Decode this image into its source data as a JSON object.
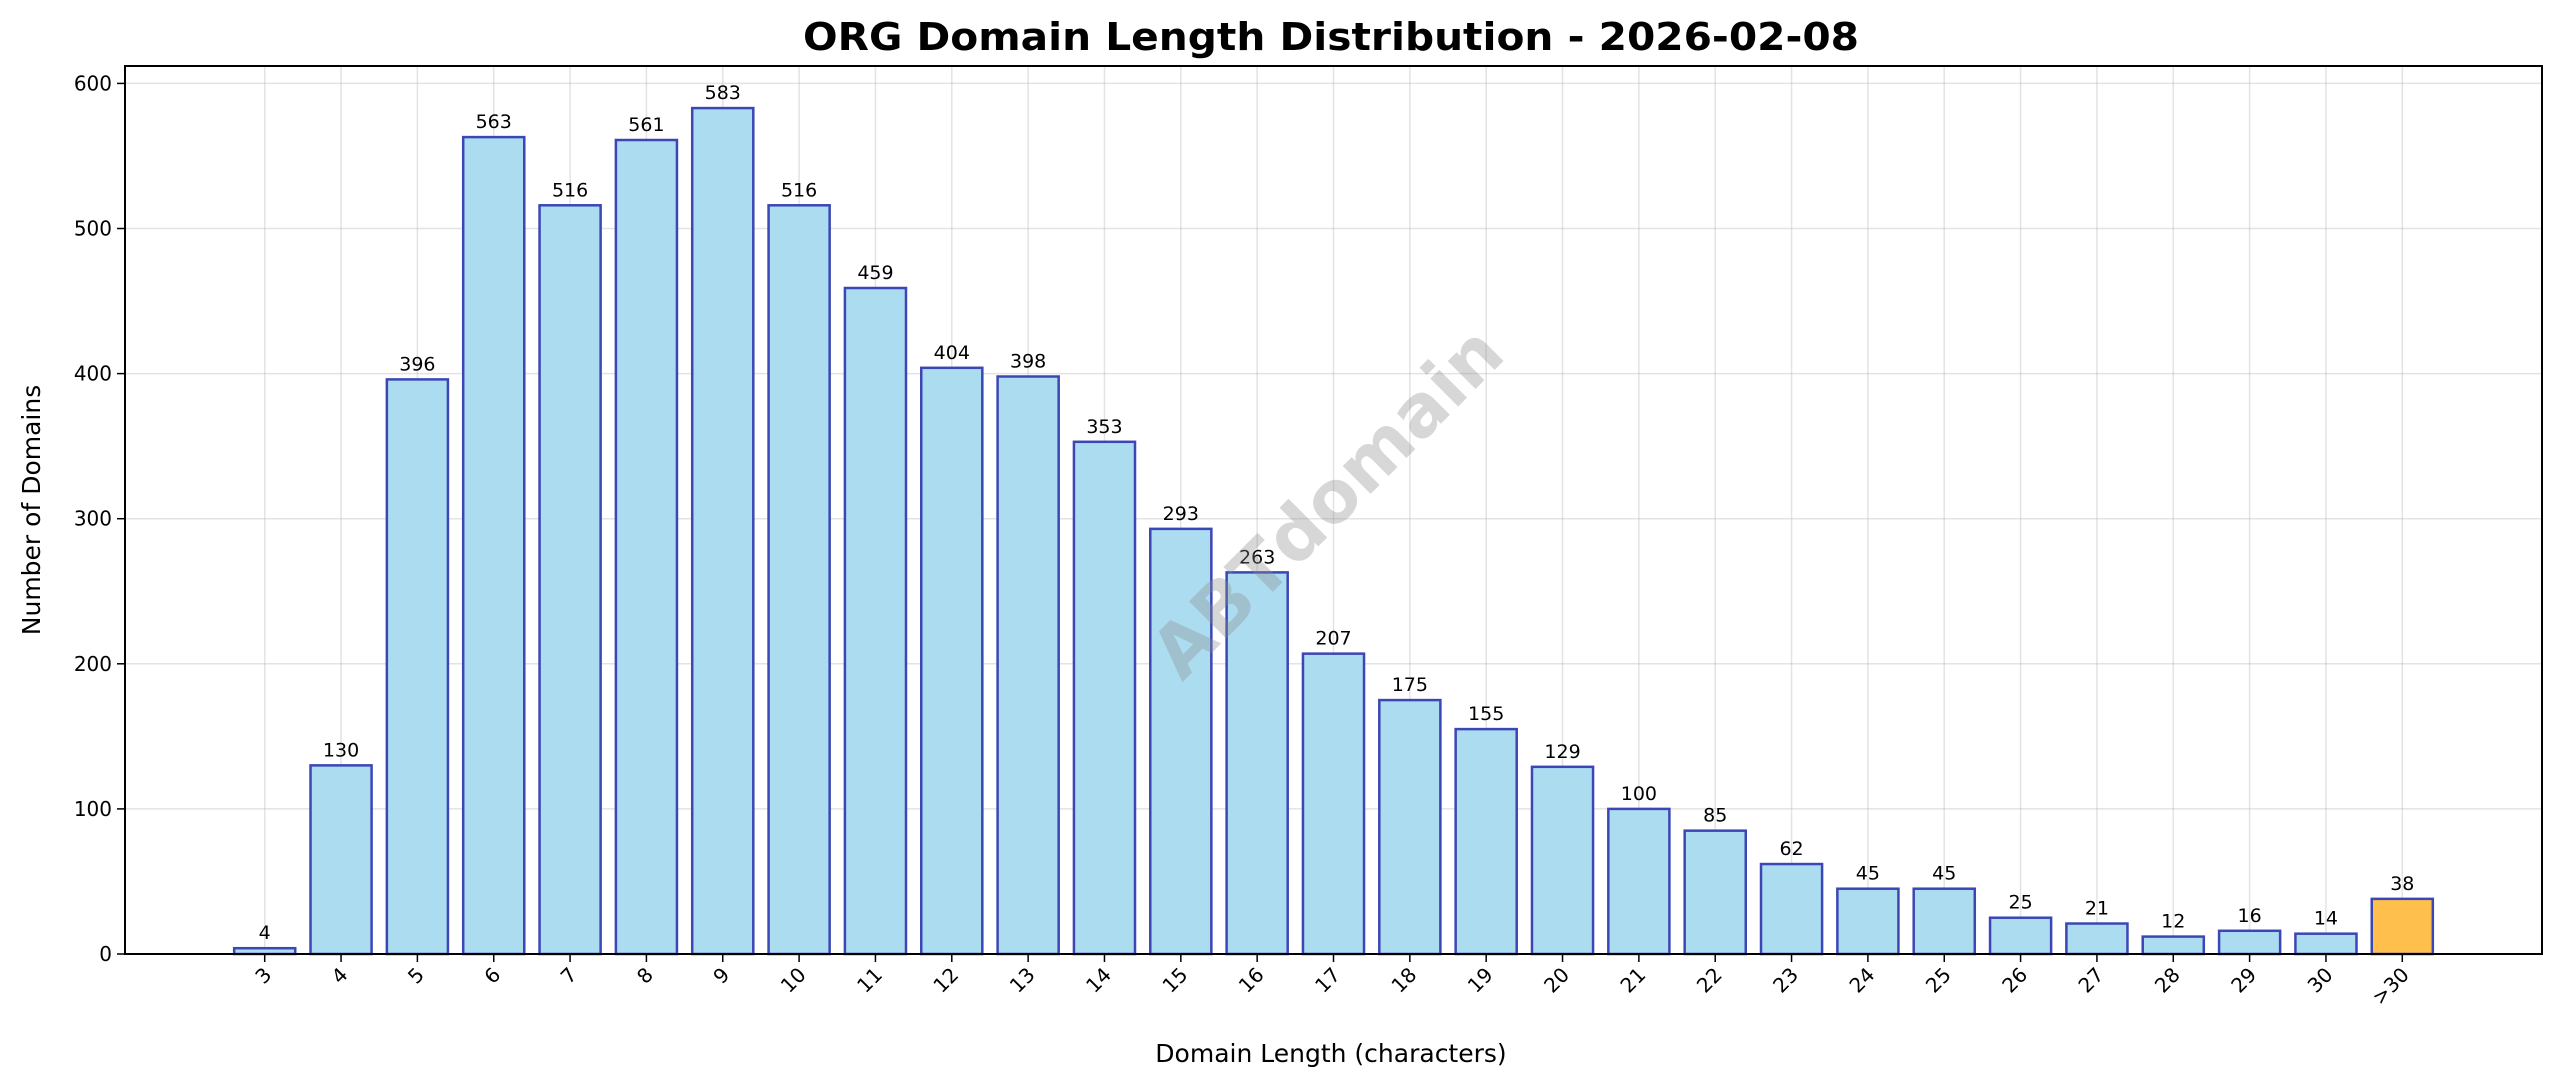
{
  "chart_data": {
    "type": "bar",
    "title": "ORG Domain Length Distribution - 2026-02-08",
    "xlabel": "Domain Length (characters)",
    "ylabel": "Number of Domains",
    "categories": [
      "3",
      "4",
      "5",
      "6",
      "7",
      "8",
      "9",
      "10",
      "11",
      "12",
      "13",
      "14",
      "15",
      "16",
      "17",
      "18",
      "19",
      "20",
      "21",
      "22",
      "23",
      "24",
      "25",
      "26",
      "27",
      "28",
      "29",
      "30",
      ">30"
    ],
    "values": [
      4,
      130,
      396,
      563,
      516,
      561,
      583,
      516,
      459,
      404,
      398,
      353,
      293,
      263,
      207,
      175,
      155,
      129,
      100,
      85,
      62,
      45,
      45,
      25,
      21,
      12,
      16,
      14,
      38
    ],
    "ylim": [
      0,
      612
    ],
    "yticks": [
      0,
      100,
      200,
      300,
      400,
      500,
      600
    ],
    "grid": true,
    "legend": "none",
    "colors": {
      "bar_fill": "#abdcf0",
      "bar_edge": "#3c46b4",
      "highlight_fill": "#ffbf4d",
      "highlight_category": ">30"
    },
    "watermark": "ABTdomain"
  }
}
